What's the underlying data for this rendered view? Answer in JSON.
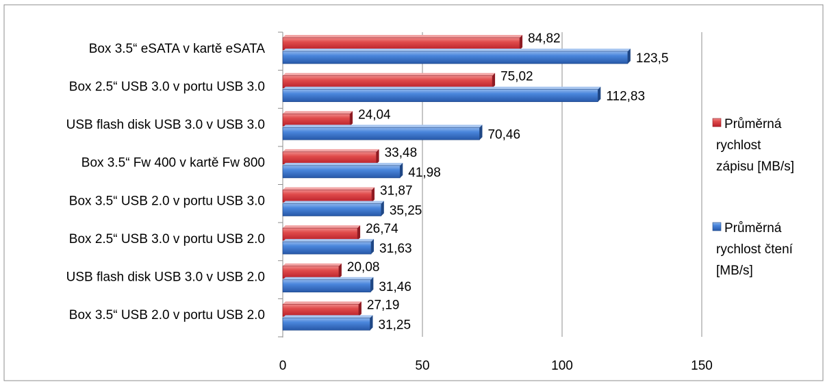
{
  "chart_data": {
    "type": "bar",
    "orientation": "horizontal",
    "categories": [
      "Box 3.5“ eSATA v kartě eSATA",
      "Box 2.5“ USB 3.0 v portu USB 3.0",
      "USB flash disk USB 3.0 v USB 3.0",
      "Box 3.5“ Fw 400 v kartě Fw  800",
      "Box 3.5“ USB 2.0 v portu USB 3.0",
      "Box 2.5“ USB 3.0  v portu USB 2.0",
      "USB flash disk USB 3.0 v USB 2.0",
      "Box 3.5“ USB 2.0 v portu USB 2.0"
    ],
    "series": [
      {
        "name": "Průměrná rychlost zápisu [MB/s]",
        "legend_lines": [
          "Průměrná",
          "rychlost",
          "zápisu [MB/s]"
        ],
        "color": "#d9343a",
        "values": [
          84.82,
          75.02,
          24.04,
          33.48,
          31.87,
          26.74,
          20.08,
          27.19
        ],
        "labels": [
          "84,82",
          "75,02",
          "24,04",
          "33,48",
          "31,87",
          "26,74",
          "20,08",
          "27,19"
        ]
      },
      {
        "name": "Průměrná rychlost čtení [MB/s]",
        "legend_lines": [
          "Průměrná",
          "rychlost čtení",
          "[MB/s]"
        ],
        "color": "#3a78cf",
        "values": [
          123.5,
          112.83,
          70.46,
          41.98,
          35.25,
          31.63,
          31.46,
          31.25
        ],
        "labels": [
          "123,5",
          "112,83",
          "70,46",
          "41,98",
          "35,25",
          "31,63",
          "31,46",
          "31,25"
        ]
      }
    ],
    "xlim": [
      0,
      150
    ],
    "xticks": [
      0,
      50,
      100,
      150
    ],
    "xtick_labels": [
      "0",
      "50",
      "100",
      "150"
    ],
    "grid": true,
    "legend_position": "right"
  }
}
